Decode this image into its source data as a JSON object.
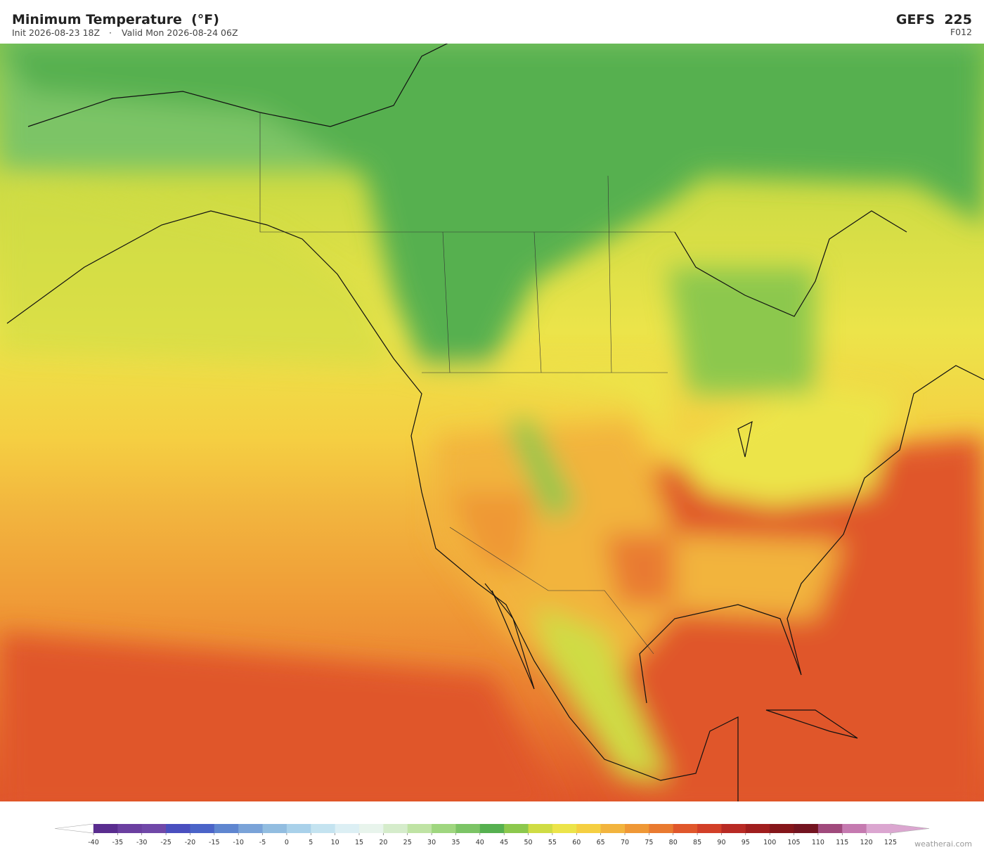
{
  "header": {
    "title": "Minimum Temperature  (°F)",
    "init": "Init 2026-08-23 18Z",
    "separator": "·",
    "valid": "Valid Mon 2026-08-24 06Z",
    "model": "GEFS  225",
    "forecast_hour": "F012"
  },
  "colorbar": {
    "levels": [
      -40,
      -35,
      -30,
      -25,
      -20,
      -15,
      -10,
      -5,
      0,
      5,
      10,
      15,
      20,
      25,
      30,
      35,
      40,
      45,
      50,
      55,
      60,
      65,
      70,
      75,
      80,
      85,
      90,
      95,
      100,
      105,
      110,
      115,
      120,
      125
    ],
    "colors": [
      "#5a2d8f",
      "#6b3fa0",
      "#7048a8",
      "#4a4fbf",
      "#4b64c8",
      "#5f86d0",
      "#7aa3d8",
      "#92bde0",
      "#a9d1ea",
      "#c4e3f0",
      "#dceff4",
      "#e8f4ec",
      "#d5eccb",
      "#bfe3a4",
      "#9fd67f",
      "#7cc466",
      "#56b050",
      "#8cc84d",
      "#cfdc44",
      "#ece44a",
      "#f5cf42",
      "#f2b43e",
      "#ef9836",
      "#e97a30",
      "#e0572b",
      "#d23f28",
      "#b82a24",
      "#a01e1e",
      "#85161a",
      "#731420",
      "#a04a7c",
      "#c57ab0",
      "#dba6d0"
    ],
    "under_color": "#ffffff",
    "over_color": "#dba6d0"
  },
  "footer": {
    "watermark": "weatherai.com"
  }
}
